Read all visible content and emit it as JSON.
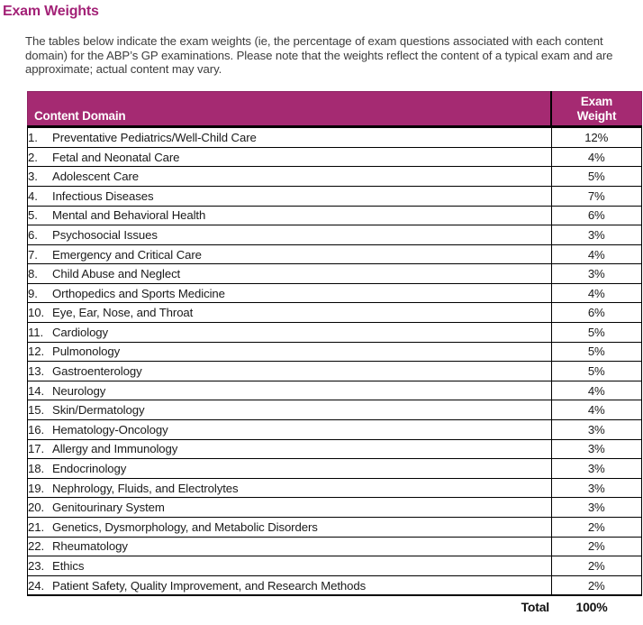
{
  "page": {
    "title": "Exam Weights",
    "intro": "The tables below indicate the exam weights (ie, the percentage of exam questions associated with each content domain) for the ABP’s GP examinations. Please note that the weights reflect the content of a typical exam and are approximate; actual content may vary."
  },
  "colors": {
    "title_magenta": "#A32277",
    "header_bg_magenta": "#A52A72",
    "header_text": "#FFFFFF",
    "body_text": "#3D3D3D",
    "row_text": "#1A1A1A",
    "border_black": "#000000"
  },
  "table": {
    "header": {
      "content_domain": "Content Domain",
      "exam_weight": "Exam\nWeight"
    },
    "rows": [
      {
        "num": "1.",
        "domain": "Preventative Pediatrics/Well-Child Care",
        "weight": "12%"
      },
      {
        "num": "2.",
        "domain": "Fetal and Neonatal Care",
        "weight": "4%"
      },
      {
        "num": "3.",
        "domain": "Adolescent Care",
        "weight": "5%"
      },
      {
        "num": "4.",
        "domain": "Infectious Diseases",
        "weight": "7%"
      },
      {
        "num": "5.",
        "domain": "Mental and Behavioral Health",
        "weight": "6%"
      },
      {
        "num": "6.",
        "domain": "Psychosocial Issues",
        "weight": "3%"
      },
      {
        "num": "7.",
        "domain": "Emergency and Critical Care",
        "weight": "4%"
      },
      {
        "num": "8.",
        "domain": "Child Abuse and Neglect",
        "weight": "3%"
      },
      {
        "num": "9.",
        "domain": "Orthopedics and Sports Medicine",
        "weight": "4%"
      },
      {
        "num": "10.",
        "domain": "Eye, Ear, Nose, and Throat",
        "weight": "6%"
      },
      {
        "num": "11.",
        "domain": "Cardiology",
        "weight": "5%"
      },
      {
        "num": "12.",
        "domain": "Pulmonology",
        "weight": "5%"
      },
      {
        "num": "13.",
        "domain": "Gastroenterology",
        "weight": "5%"
      },
      {
        "num": "14.",
        "domain": "Neurology",
        "weight": "4%"
      },
      {
        "num": "15.",
        "domain": "Skin/Dermatology",
        "weight": "4%"
      },
      {
        "num": "16.",
        "domain": "Hematology-Oncology",
        "weight": "3%"
      },
      {
        "num": "17.",
        "domain": "Allergy and Immunology",
        "weight": "3%"
      },
      {
        "num": "18.",
        "domain": "Endocrinology",
        "weight": "3%"
      },
      {
        "num": "19.",
        "domain": "Nephrology, Fluids, and Electrolytes",
        "weight": "3%"
      },
      {
        "num": "20.",
        "domain": "Genitourinary System",
        "weight": "3%"
      },
      {
        "num": "21.",
        "domain": "Genetics, Dysmorphology, and Metabolic Disorders",
        "weight": "2%"
      },
      {
        "num": "22.",
        "domain": "Rheumatology",
        "weight": "2%"
      },
      {
        "num": "23.",
        "domain": "Ethics",
        "weight": "2%"
      },
      {
        "num": "24.",
        "domain": "Patient Safety, Quality Improvement, and Research Methods",
        "weight": "2%"
      }
    ],
    "total_label": "Total",
    "total_value": "100%"
  }
}
